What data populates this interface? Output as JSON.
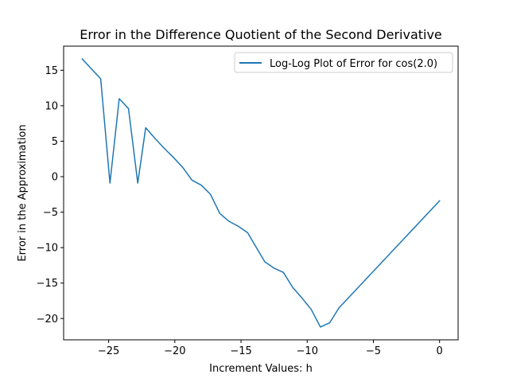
{
  "chart_data": {
    "type": "line",
    "title": "Error in the Difference Quotient of the Second Derivative",
    "xlabel": "Increment Values: h",
    "ylabel": "Error in the Approximation",
    "xlim": [
      -28.4,
      1.4
    ],
    "ylim": [
      -23.0,
      18.4
    ],
    "x_ticks": [
      -25,
      -20,
      -15,
      -10,
      -5,
      0
    ],
    "x_tick_labels": [
      "−25",
      "−20",
      "−15",
      "−10",
      "−5",
      "0"
    ],
    "y_ticks": [
      15,
      10,
      5,
      0,
      -5,
      -10,
      -15,
      -20
    ],
    "y_tick_labels": [
      "15",
      "10",
      "5",
      "0",
      "−5",
      "−10",
      "−15",
      "−20"
    ],
    "grid": false,
    "legend_position": "top-right",
    "series": [
      {
        "name": "Log-Log Plot of Error for cos(2.0)",
        "color": "#1f77b4",
        "x": [
          -27.0,
          -25.6,
          -24.9,
          -24.2,
          -23.5,
          -22.8,
          -22.2,
          -21.5,
          -20.8,
          -20.1,
          -19.4,
          -18.7,
          -18.0,
          -17.3,
          -16.6,
          -15.9,
          -15.2,
          -14.5,
          -13.9,
          -13.2,
          -12.5,
          -11.8,
          -11.1,
          -10.4,
          -9.7,
          -9.0,
          -8.3,
          -7.6,
          0.0
        ],
        "y": [
          16.6,
          13.8,
          -0.9,
          11.0,
          9.6,
          -0.9,
          6.9,
          5.4,
          4.0,
          2.7,
          1.3,
          -0.5,
          -1.2,
          -2.5,
          -5.2,
          -6.3,
          -7.0,
          -7.9,
          -9.8,
          -12.0,
          -12.9,
          -13.5,
          -15.6,
          -17.1,
          -18.7,
          -21.2,
          -20.6,
          -18.5,
          -3.4
        ]
      }
    ]
  }
}
